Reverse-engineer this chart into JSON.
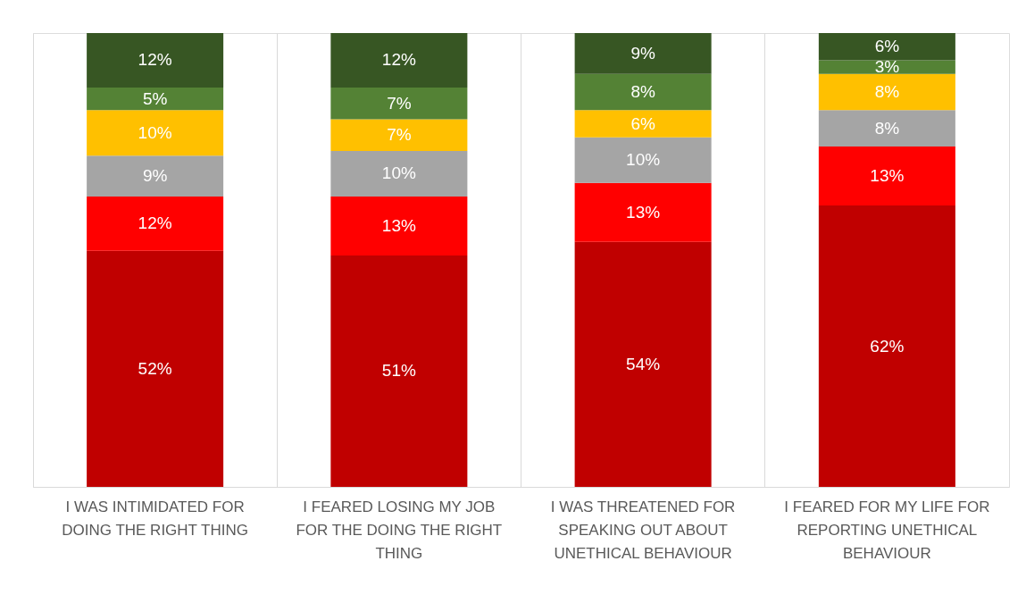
{
  "chart_data": {
    "type": "bar",
    "stacked": true,
    "grid": "x",
    "legend": false,
    "categories": [
      "I WAS INTIMIDATED FOR DOING THE RIGHT THING",
      "I FEARED LOSING MY JOB FOR THE DOING THE RIGHT THING",
      "I WAS THREATENED FOR SPEAKING OUT ABOUT UNETHICAL BEHAVIOUR",
      "I FEARED FOR MY LIFE FOR REPORTING UNETHICAL BEHAVIOUR"
    ],
    "ylim": [
      0,
      100
    ],
    "series": [
      {
        "color": "#c00000",
        "values": [
          52,
          51,
          54,
          62
        ],
        "value_labels": [
          "52%",
          "51%",
          "54%",
          "62%"
        ]
      },
      {
        "color": "#ff0000",
        "values": [
          12,
          13,
          13,
          13
        ],
        "value_labels": [
          "12%",
          "13%",
          "13%",
          "13%"
        ]
      },
      {
        "color": "#a5a5a5",
        "values": [
          9,
          10,
          10,
          8
        ],
        "value_labels": [
          "9%",
          "10%",
          "10%",
          "8%"
        ]
      },
      {
        "color": "#ffc000",
        "values": [
          10,
          7,
          6,
          8
        ],
        "value_labels": [
          "10%",
          "7%",
          "6%",
          "8%"
        ]
      },
      {
        "color": "#548235",
        "values": [
          5,
          7,
          8,
          3
        ],
        "value_labels": [
          "5%",
          "7%",
          "8%",
          "3%"
        ]
      },
      {
        "color": "#375623",
        "values": [
          12,
          12,
          9,
          6
        ],
        "value_labels": [
          "12%",
          "12%",
          "9%",
          "6%"
        ]
      }
    ]
  }
}
